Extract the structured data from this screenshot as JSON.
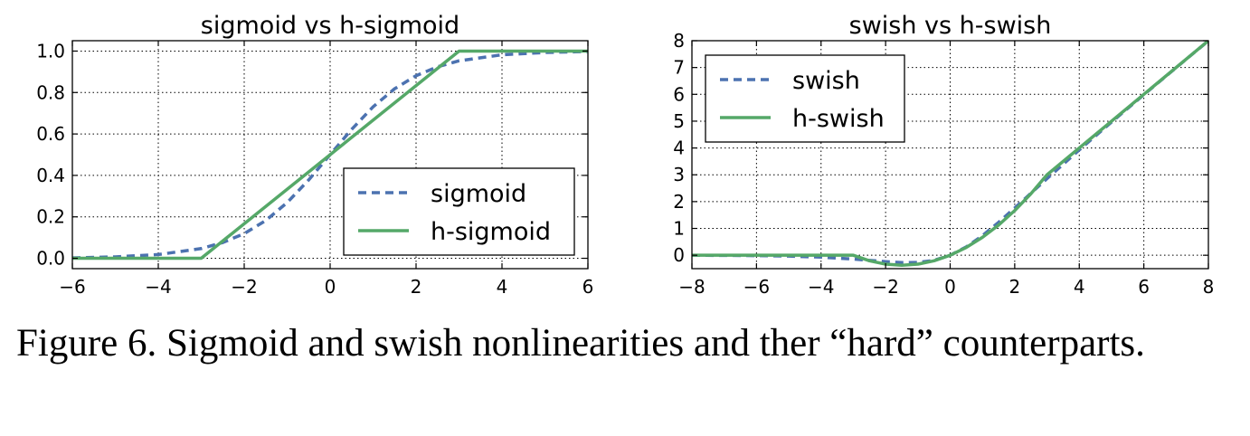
{
  "figure": {
    "caption": "Figure 6. Sigmoid and swish nonlinearities and ther “hard” counterparts.",
    "colors": {
      "dashed": "#4c72b0",
      "solid": "#55a868",
      "grid": "#000000"
    }
  },
  "chart_data": [
    {
      "type": "line",
      "title": "sigmoid vs h-sigmoid",
      "xlabel": "",
      "ylabel": "",
      "xlim": [
        -6,
        6
      ],
      "ylim": [
        -0.05,
        1.05
      ],
      "xticks": [
        -6,
        -4,
        -2,
        0,
        2,
        4,
        6
      ],
      "xtick_labels": [
        "−6",
        "−4",
        "−2",
        "0",
        "2",
        "4",
        "6"
      ],
      "yticks": [
        0.0,
        0.2,
        0.4,
        0.6,
        0.8,
        1.0
      ],
      "ytick_labels": [
        "0.0",
        "0.2",
        "0.4",
        "0.6",
        "0.8",
        "1.0"
      ],
      "grid": true,
      "legend_position": "center-right",
      "series": [
        {
          "name": "sigmoid",
          "style": "dashed",
          "x": [
            -6,
            -5,
            -4,
            -3,
            -2.5,
            -2,
            -1.5,
            -1,
            -0.5,
            0,
            0.5,
            1,
            1.5,
            2,
            2.5,
            3,
            4,
            5,
            6
          ],
          "y": [
            0.002,
            0.007,
            0.018,
            0.047,
            0.076,
            0.119,
            0.182,
            0.269,
            0.378,
            0.5,
            0.622,
            0.731,
            0.818,
            0.881,
            0.924,
            0.953,
            0.982,
            0.993,
            0.998
          ]
        },
        {
          "name": "h-sigmoid",
          "style": "solid",
          "x": [
            -6,
            -3,
            3,
            6
          ],
          "y": [
            0,
            0,
            1,
            1
          ]
        }
      ]
    },
    {
      "type": "line",
      "title": "swish vs h-swish",
      "xlabel": "",
      "ylabel": "",
      "xlim": [
        -8,
        8
      ],
      "ylim": [
        -0.5,
        8
      ],
      "xticks": [
        -8,
        -6,
        -4,
        -2,
        0,
        2,
        4,
        6,
        8
      ],
      "xtick_labels": [
        "−8",
        "−6",
        "−4",
        "−2",
        "0",
        "2",
        "4",
        "6",
        "8"
      ],
      "yticks": [
        0,
        1,
        2,
        3,
        4,
        5,
        6,
        7,
        8
      ],
      "ytick_labels": [
        "0",
        "1",
        "2",
        "3",
        "4",
        "5",
        "6",
        "7",
        "8"
      ],
      "grid": true,
      "legend_position": "upper-left",
      "series": [
        {
          "name": "swish",
          "style": "dashed",
          "x": [
            -8,
            -7,
            -6,
            -5,
            -4,
            -3,
            -2.5,
            -2,
            -1.5,
            -1,
            -0.5,
            0,
            0.5,
            1,
            1.5,
            2,
            2.5,
            3,
            4,
            5,
            6,
            7,
            8
          ],
          "y": [
            -0.003,
            -0.006,
            -0.015,
            -0.033,
            -0.072,
            -0.142,
            -0.19,
            -0.238,
            -0.274,
            -0.269,
            -0.189,
            0,
            0.311,
            0.731,
            1.227,
            1.762,
            2.31,
            2.858,
            3.928,
            4.967,
            5.985,
            6.994,
            7.997
          ]
        },
        {
          "name": "h-swish",
          "style": "solid",
          "x": [
            -8,
            -3,
            -2.5,
            -2,
            -1.5,
            -1,
            -0.5,
            0,
            0.5,
            1,
            1.5,
            2,
            2.5,
            3,
            8
          ],
          "y": [
            0,
            0,
            -0.208,
            -0.333,
            -0.375,
            -0.333,
            -0.208,
            0,
            0.292,
            0.667,
            1.125,
            1.667,
            2.292,
            3,
            8
          ]
        }
      ]
    }
  ]
}
